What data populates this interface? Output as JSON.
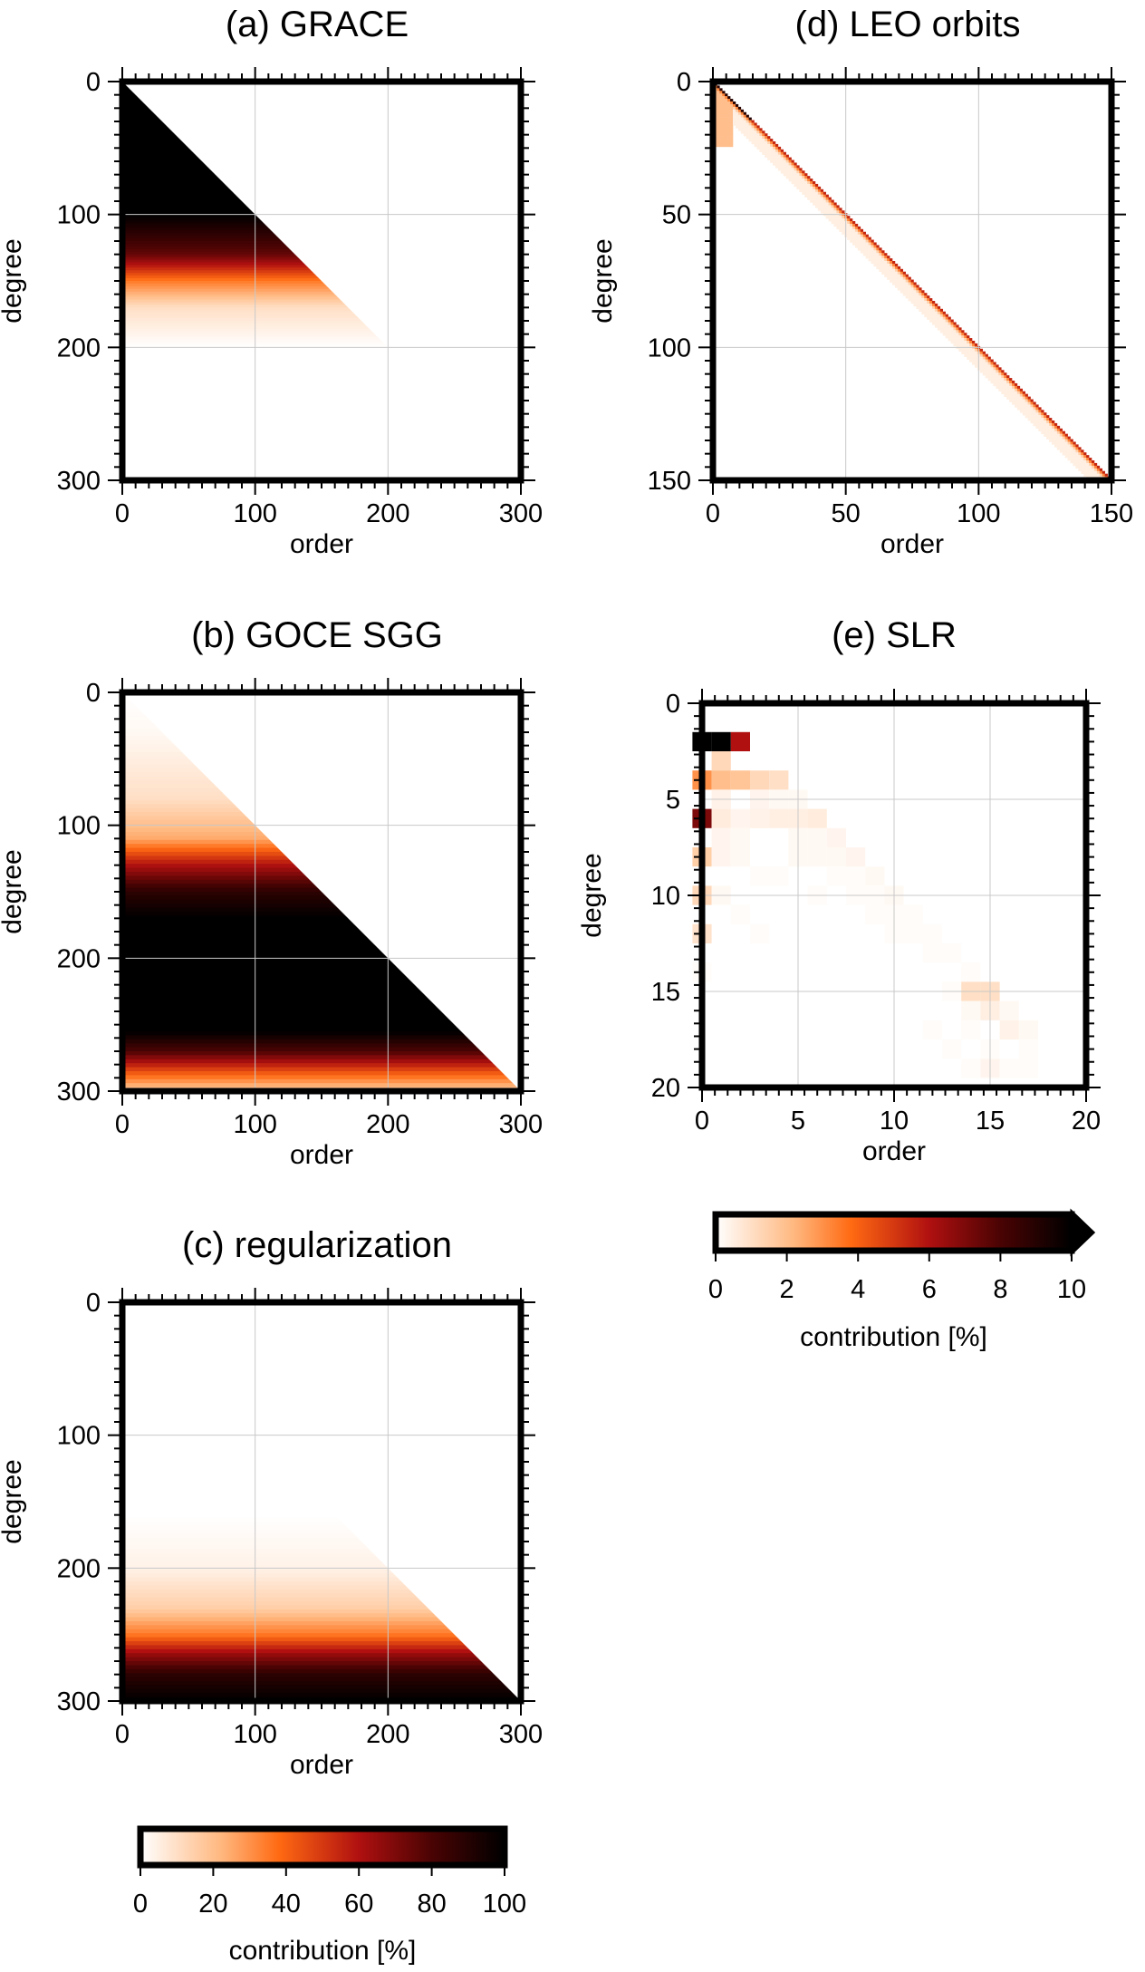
{
  "figure": {
    "colormap": "hot (white to orange to dark red to black)",
    "colors": {
      "frame": "#000000",
      "grid": "#c8c8c8",
      "white": "#ffffff",
      "orange": "#ff6a12",
      "red": "#b01010",
      "black": "#000000"
    }
  },
  "chart_data": [
    {
      "id": "a",
      "type": "heatmap",
      "title": "(a) GRACE",
      "xlabel": "order",
      "ylabel": "degree",
      "xlim": [
        0,
        300
      ],
      "ylim": [
        0,
        300
      ],
      "xticks": [
        "0",
        "100",
        "200",
        "300"
      ],
      "yticks": [
        "0",
        "100",
        "200",
        "300"
      ],
      "xtick_values": [
        0,
        100,
        200,
        300
      ],
      "ytick_values": [
        0,
        100,
        200,
        300
      ],
      "max_degree": 200,
      "value_scale": "0-100 %",
      "profile": [
        [
          0,
          100
        ],
        [
          100,
          100
        ],
        [
          130,
          75
        ],
        [
          150,
          35
        ],
        [
          170,
          10
        ],
        [
          200,
          0
        ]
      ]
    },
    {
      "id": "b",
      "type": "heatmap",
      "title": "(b) GOCE SGG",
      "xlabel": "order",
      "ylabel": "degree",
      "xlim": [
        0,
        300
      ],
      "ylim": [
        0,
        300
      ],
      "xticks": [
        "0",
        "100",
        "200",
        "300"
      ],
      "yticks": [
        "0",
        "100",
        "200",
        "300"
      ],
      "xtick_values": [
        0,
        100,
        200,
        300
      ],
      "ytick_values": [
        0,
        100,
        200,
        300
      ],
      "max_degree": 300,
      "value_scale": "0-100 %",
      "profile": [
        [
          0,
          0
        ],
        [
          30,
          2
        ],
        [
          80,
          10
        ],
        [
          110,
          25
        ],
        [
          130,
          60
        ],
        [
          150,
          88
        ],
        [
          170,
          100
        ],
        [
          255,
          100
        ],
        [
          270,
          80
        ],
        [
          285,
          45
        ],
        [
          300,
          15
        ]
      ]
    },
    {
      "id": "c",
      "type": "heatmap",
      "title": "(c) regularization",
      "xlabel": "order",
      "ylabel": "degree",
      "xlim": [
        0,
        300
      ],
      "ylim": [
        0,
        300
      ],
      "xticks": [
        "0",
        "100",
        "200",
        "300"
      ],
      "yticks": [
        "0",
        "100",
        "200",
        "300"
      ],
      "xtick_values": [
        0,
        100,
        200,
        300
      ],
      "ytick_values": [
        0,
        100,
        200,
        300
      ],
      "max_degree": 300,
      "value_scale": "0-100 %",
      "profile": [
        [
          0,
          0
        ],
        [
          160,
          0
        ],
        [
          200,
          4
        ],
        [
          230,
          15
        ],
        [
          250,
          35
        ],
        [
          265,
          65
        ],
        [
          280,
          88
        ],
        [
          300,
          100
        ]
      ]
    },
    {
      "id": "d",
      "type": "heatmap",
      "title": "(d) LEO orbits",
      "xlabel": "order",
      "ylabel": "degree",
      "xlim": [
        0,
        150
      ],
      "ylim": [
        0,
        150
      ],
      "xticks": [
        "0",
        "50",
        "100",
        "150"
      ],
      "yticks": [
        "0",
        "50",
        "100",
        "150"
      ],
      "xtick_values": [
        0,
        50,
        100,
        150
      ],
      "ytick_values": [
        0,
        50,
        100,
        150
      ],
      "max_degree": 150,
      "value_scale": "0-10 %",
      "note": "contribution concentrated along the diagonal (degree ≈ order)"
    },
    {
      "id": "e",
      "type": "heatmap",
      "title": "(e) SLR",
      "xlabel": "order",
      "ylabel": "degree",
      "xlim": [
        0,
        20
      ],
      "ylim": [
        0,
        20
      ],
      "xticks": [
        "0",
        "5",
        "10",
        "15",
        "20"
      ],
      "yticks": [
        "0",
        "5",
        "10",
        "15",
        "20"
      ],
      "xtick_values": [
        0,
        5,
        10,
        15,
        20
      ],
      "ytick_values": [
        0,
        5,
        10,
        15,
        20
      ],
      "max_degree": 20,
      "value_scale": "0-10 %",
      "cells": [
        [
          2,
          0,
          10
        ],
        [
          2,
          1,
          10
        ],
        [
          2,
          2,
          6
        ],
        [
          3,
          1,
          1.2
        ],
        [
          4,
          0,
          3
        ],
        [
          4,
          1,
          2
        ],
        [
          4,
          2,
          1.8
        ],
        [
          4,
          3,
          1.2
        ],
        [
          4,
          4,
          1
        ],
        [
          5,
          1,
          0.4
        ],
        [
          5,
          3,
          0.3
        ],
        [
          5,
          4,
          0.2
        ],
        [
          5,
          5,
          0.2
        ],
        [
          6,
          0,
          7
        ],
        [
          6,
          1,
          0.6
        ],
        [
          6,
          2,
          0.3
        ],
        [
          6,
          3,
          0.4
        ],
        [
          6,
          4,
          0.5
        ],
        [
          6,
          5,
          0.5
        ],
        [
          6,
          6,
          0.6
        ],
        [
          7,
          1,
          0.3
        ],
        [
          7,
          2,
          0.2
        ],
        [
          7,
          5,
          0.2
        ],
        [
          7,
          6,
          0.2
        ],
        [
          7,
          7,
          0.3
        ],
        [
          8,
          0,
          1.5
        ],
        [
          8,
          1,
          0.3
        ],
        [
          8,
          2,
          0.2
        ],
        [
          8,
          5,
          0.2
        ],
        [
          8,
          6,
          0.2
        ],
        [
          8,
          7,
          0.2
        ],
        [
          8,
          8,
          0.3
        ],
        [
          9,
          3,
          0.1
        ],
        [
          9,
          4,
          0.1
        ],
        [
          9,
          7,
          0.1
        ],
        [
          9,
          8,
          0.1
        ],
        [
          9,
          9,
          0.2
        ],
        [
          10,
          0,
          1.2
        ],
        [
          10,
          1,
          0.2
        ],
        [
          10,
          6,
          0.1
        ],
        [
          10,
          8,
          0.1
        ],
        [
          10,
          9,
          0.1
        ],
        [
          10,
          10,
          0.2
        ],
        [
          11,
          2,
          0.1
        ],
        [
          11,
          9,
          0.1
        ],
        [
          11,
          10,
          0.1
        ],
        [
          11,
          11,
          0.1
        ],
        [
          12,
          0,
          0.9
        ],
        [
          12,
          3,
          0.1
        ],
        [
          12,
          10,
          0.1
        ],
        [
          12,
          11,
          0.1
        ],
        [
          12,
          12,
          0.1
        ],
        [
          13,
          12,
          0.1
        ],
        [
          13,
          13,
          0.1
        ],
        [
          14,
          0,
          0.1
        ],
        [
          14,
          14,
          0.1
        ],
        [
          15,
          13,
          0.1
        ],
        [
          15,
          14,
          1
        ],
        [
          15,
          15,
          1
        ],
        [
          16,
          14,
          0.2
        ],
        [
          16,
          15,
          0.5
        ],
        [
          16,
          16,
          0.2
        ],
        [
          17,
          12,
          0.1
        ],
        [
          17,
          14,
          0.1
        ],
        [
          17,
          16,
          0.4
        ],
        [
          17,
          17,
          0.2
        ],
        [
          18,
          13,
          0.1
        ],
        [
          18,
          15,
          0.1
        ],
        [
          18,
          17,
          0.1
        ],
        [
          19,
          14,
          0.1
        ],
        [
          19,
          15,
          0.3
        ],
        [
          19,
          16,
          0.1
        ],
        [
          19,
          17,
          0.1
        ]
      ]
    }
  ],
  "colorbars": [
    {
      "id": "cb-percent10",
      "label": "contribution [%]",
      "ticks": [
        "0",
        "2",
        "4",
        "6",
        "8",
        "10"
      ],
      "tick_values": [
        0,
        2,
        4,
        6,
        8,
        10
      ],
      "range": [
        0,
        10
      ],
      "extend": "max"
    },
    {
      "id": "cb-percent100",
      "label": "contribution [%]",
      "ticks": [
        "0",
        "20",
        "40",
        "60",
        "80",
        "100"
      ],
      "tick_values": [
        0,
        20,
        40,
        60,
        80,
        100
      ],
      "range": [
        0,
        100
      ],
      "extend": "none"
    }
  ]
}
